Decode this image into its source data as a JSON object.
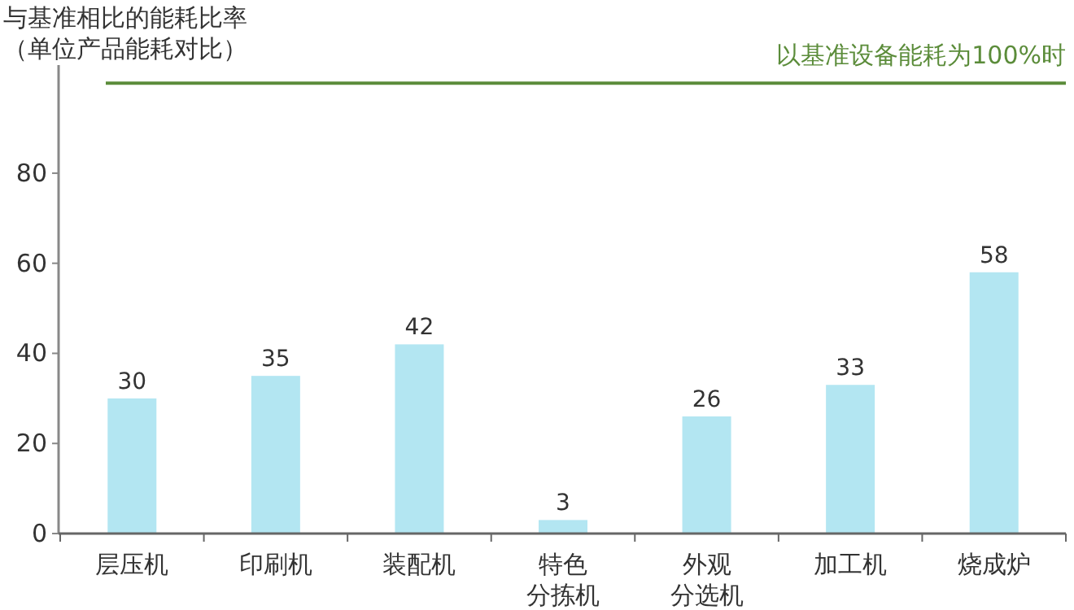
{
  "chart_data": {
    "type": "bar",
    "title": "与基准相比的能耗比率",
    "subtitle": "（单位产品能耗对比）",
    "categories": [
      "层压机",
      "印刷机",
      "装配机",
      "特色分拣机",
      "外观分选机",
      "加工机",
      "烧成炉"
    ],
    "values": [
      30,
      35,
      42,
      3,
      26,
      33,
      58
    ],
    "color": "#b3e6f2",
    "ylim": [
      0,
      104
    ],
    "yticks": [
      0,
      20,
      40,
      60,
      80
    ],
    "grid": false,
    "data_labels": true,
    "ref_lines": [
      {
        "axis": "y",
        "value": 100,
        "label": "以基准设备能耗为100%时",
        "color": "#5b8c3a"
      }
    ]
  }
}
